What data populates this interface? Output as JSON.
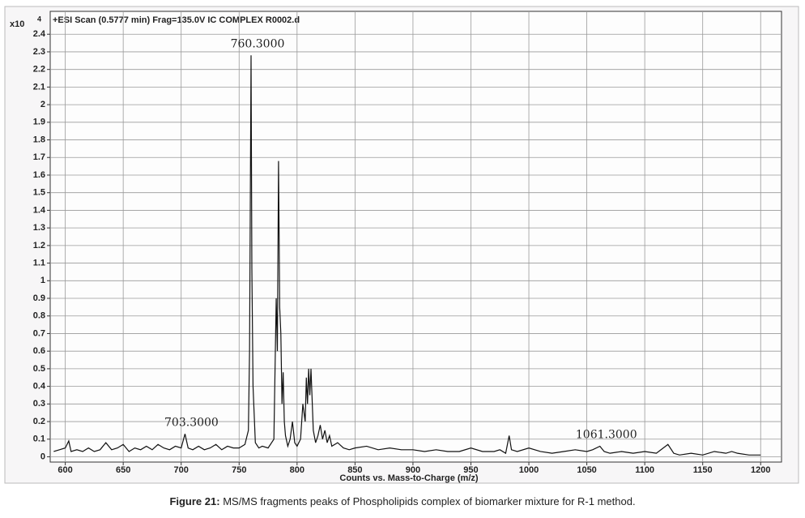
{
  "chart_data": {
    "type": "line",
    "title": "+ESI Scan (0.5777 min) Frag=135.0V IC COMPLEX R0002.d",
    "y_unit": {
      "base": "x10",
      "exponent": "4"
    },
    "xlabel": "Counts vs. Mass-to-Charge (m/z)",
    "color": "#111111",
    "grid": true,
    "xlim": [
      587,
      1218
    ],
    "ylim": [
      -0.03,
      2.53
    ],
    "xticks": [
      600,
      650,
      700,
      750,
      800,
      850,
      900,
      950,
      1000,
      1050,
      1100,
      1150,
      1200
    ],
    "yticks": [
      0,
      0.1,
      0.2,
      0.3,
      0.4,
      0.5,
      0.6,
      0.7,
      0.8,
      0.9,
      1,
      1.1,
      1.2,
      1.3,
      1.4,
      1.5,
      1.6,
      1.7,
      1.8,
      1.9,
      2,
      2.1,
      2.2,
      2.3,
      2.4
    ],
    "x": [
      590,
      595,
      600,
      603,
      605,
      610,
      615,
      620,
      625,
      630,
      635,
      640,
      645,
      650,
      655,
      660,
      665,
      670,
      675,
      680,
      685,
      690,
      695,
      700,
      703.3,
      706,
      710,
      715,
      720,
      725,
      730,
      735,
      740,
      745,
      750,
      755,
      758,
      759,
      760.3,
      761,
      762,
      764,
      767,
      770,
      775,
      780,
      781,
      782,
      783,
      784,
      785,
      786,
      787,
      788,
      789,
      790,
      792,
      794,
      796,
      798,
      800,
      803,
      805,
      807,
      808,
      809,
      810,
      811,
      812,
      814,
      816,
      818,
      820,
      822,
      824,
      826,
      828,
      830,
      835,
      840,
      845,
      850,
      860,
      870,
      880,
      890,
      900,
      910,
      920,
      930,
      940,
      950,
      960,
      970,
      975,
      980,
      983,
      985,
      990,
      1000,
      1010,
      1020,
      1030,
      1040,
      1050,
      1055,
      1061.3,
      1065,
      1070,
      1080,
      1090,
      1100,
      1110,
      1120,
      1125,
      1130,
      1140,
      1150,
      1160,
      1170,
      1175,
      1180,
      1190,
      1200
    ],
    "values": [
      0.03,
      0.04,
      0.05,
      0.09,
      0.03,
      0.04,
      0.03,
      0.05,
      0.03,
      0.04,
      0.08,
      0.04,
      0.05,
      0.07,
      0.03,
      0.05,
      0.04,
      0.06,
      0.04,
      0.07,
      0.05,
      0.04,
      0.06,
      0.05,
      0.13,
      0.05,
      0.04,
      0.06,
      0.04,
      0.05,
      0.07,
      0.04,
      0.06,
      0.05,
      0.05,
      0.07,
      0.15,
      0.6,
      2.28,
      1.07,
      0.4,
      0.08,
      0.05,
      0.06,
      0.05,
      0.1,
      0.5,
      0.9,
      0.6,
      1.68,
      0.85,
      0.7,
      0.3,
      0.48,
      0.2,
      0.12,
      0.06,
      0.1,
      0.2,
      0.08,
      0.06,
      0.1,
      0.3,
      0.2,
      0.45,
      0.3,
      0.5,
      0.35,
      0.5,
      0.15,
      0.08,
      0.12,
      0.18,
      0.1,
      0.15,
      0.08,
      0.12,
      0.06,
      0.08,
      0.05,
      0.04,
      0.05,
      0.06,
      0.04,
      0.05,
      0.04,
      0.04,
      0.03,
      0.04,
      0.03,
      0.03,
      0.05,
      0.03,
      0.03,
      0.04,
      0.02,
      0.12,
      0.04,
      0.03,
      0.05,
      0.03,
      0.02,
      0.03,
      0.04,
      0.03,
      0.04,
      0.06,
      0.03,
      0.02,
      0.03,
      0.02,
      0.03,
      0.02,
      0.07,
      0.02,
      0.01,
      0.02,
      0.01,
      0.03,
      0.02,
      0.03,
      0.02,
      0.01,
      0.01
    ],
    "annotations": [
      {
        "label": "703.3000",
        "x": 703.3,
        "y": 0.13
      },
      {
        "label": "760.3000",
        "x": 760.3,
        "y": 2.28
      },
      {
        "label": "1061.3000",
        "x": 1061.3,
        "y": 0.06
      }
    ]
  },
  "caption": {
    "label": "Figure 21:",
    "text": "MS/MS fragments peaks of Phospholipids complex of biomarker mixture for R-1 method."
  }
}
